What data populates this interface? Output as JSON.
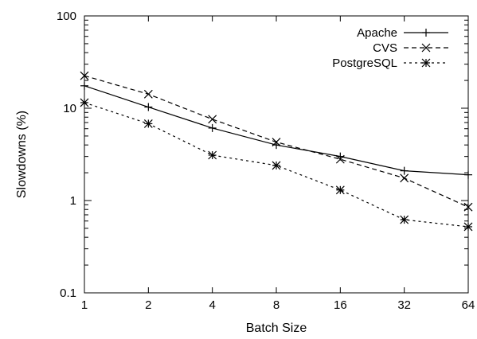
{
  "chart_data": {
    "type": "line",
    "title": "",
    "xlabel": "Batch Size",
    "ylabel": "Slowdowns (%)",
    "x_scale": "log2",
    "y_scale": "log10",
    "x": [
      1,
      2,
      4,
      8,
      16,
      32,
      64
    ],
    "x_tick_labels": [
      "1",
      "2",
      "4",
      "8",
      "16",
      "32",
      "64"
    ],
    "ylim": [
      0.1,
      100
    ],
    "y_ticks": [
      0.1,
      1,
      10,
      100
    ],
    "y_tick_labels": [
      "0.1",
      "1",
      "10",
      "100"
    ],
    "grid": false,
    "legend_position": "top-right",
    "series": [
      {
        "name": "Apache",
        "line_style": "solid",
        "marker": "plus",
        "color": "#000000",
        "values": [
          17.5,
          10.3,
          6.1,
          4.0,
          3.0,
          2.1,
          1.9
        ]
      },
      {
        "name": "CVS",
        "line_style": "dashed",
        "marker": "cross",
        "color": "#000000",
        "values": [
          22.5,
          14.2,
          7.6,
          4.3,
          2.8,
          1.75,
          0.85
        ]
      },
      {
        "name": "PostgreSQL",
        "line_style": "dotted",
        "marker": "star",
        "color": "#000000",
        "values": [
          11.5,
          6.8,
          3.1,
          2.4,
          1.3,
          0.62,
          0.52
        ]
      }
    ]
  }
}
